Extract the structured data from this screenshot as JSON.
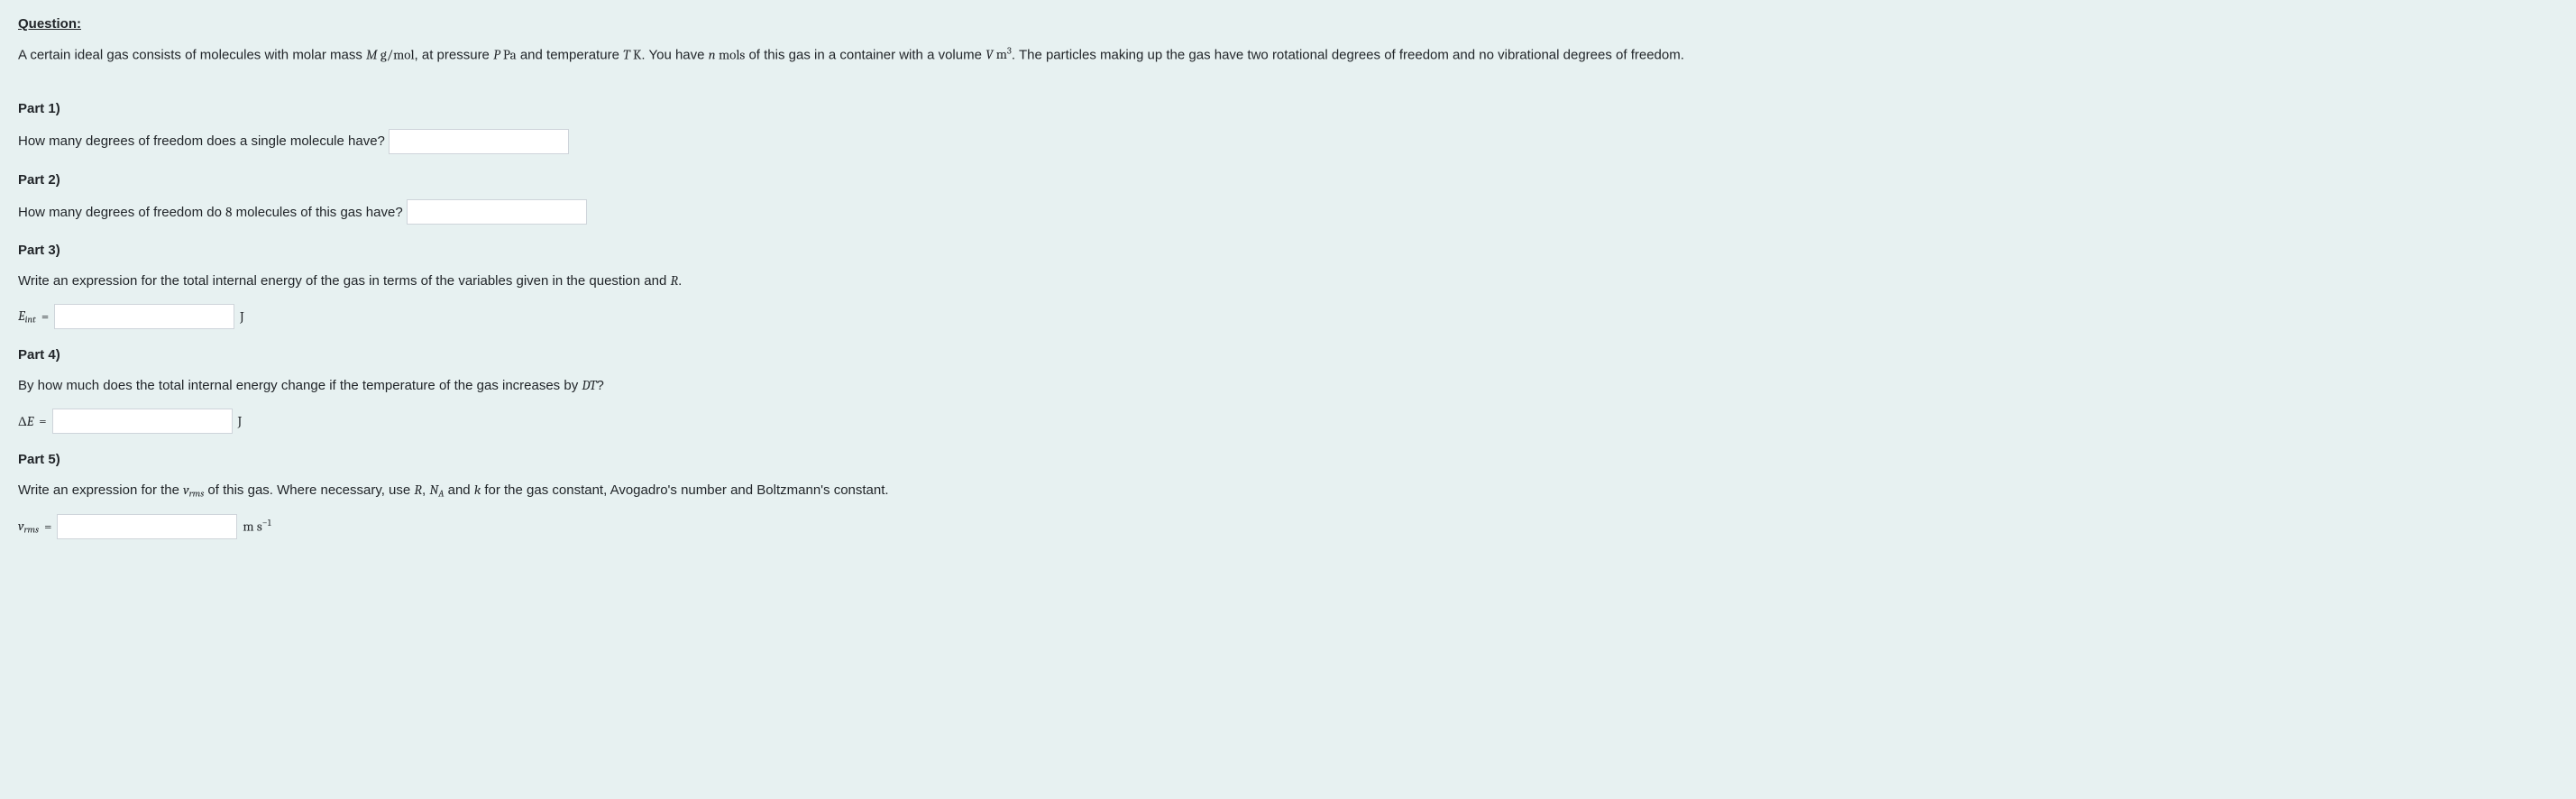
{
  "title": "Question:",
  "intro": {
    "seg1": "A certain ideal gas consists of molecules with molar mass ",
    "M": "M",
    "unit_gmol": " g/mol",
    "seg2": ", at pressure ",
    "P": "P",
    "unit_Pa": " Pa",
    "seg3": " and temperature ",
    "T": "T",
    "unit_K": " K",
    "seg4": ". You have ",
    "n": "n",
    "unit_mols": " mols",
    "seg5": " of this gas in a container with a volume ",
    "V": "V",
    "unit_m3_pre": " m",
    "unit_m3_sup": "3",
    "seg6": ". The particles making up the gas have two rotational degrees of freedom and no vibrational degrees of freedom."
  },
  "part1": {
    "title": "Part 1)",
    "text": "How many degrees of freedom does a single molecule have?"
  },
  "part2": {
    "title": "Part 2)",
    "text_pre": "How many degrees of freedom do ",
    "num": "8",
    "text_post": " molecules of this gas have?"
  },
  "part3": {
    "title": "Part 3)",
    "text_pre": "Write an expression for the total internal energy of the gas in terms of the variables given in the question and ",
    "R": "R",
    "text_post": ".",
    "lhs_E": "E",
    "lhs_sub": "int",
    "eq": " = ",
    "unit": "J"
  },
  "part4": {
    "title": "Part 4)",
    "text_pre": "By how much does the total internal energy change if the temperature of the gas increases by ",
    "DT": "DT",
    "text_post": "?",
    "lhs_delta": "Δ",
    "lhs_E": "E",
    "eq": " = ",
    "unit": "J"
  },
  "part5": {
    "title": "Part 5)",
    "text_pre": "Write an expression for the ",
    "vrms_v": "v",
    "vrms_sub": "rms",
    "text_mid": " of this gas. Where necessary, use ",
    "R": "R",
    "comma1": ", ",
    "NA_N": "N",
    "NA_sub": "A",
    "and": " and ",
    "k": "k",
    "text_post": " for the gas constant, Avogadro's number and Boltzmann's constant.",
    "lhs_v": "v",
    "lhs_sub": "rms",
    "eq": " = ",
    "unit_pre": "m s",
    "unit_sup": "−1"
  }
}
